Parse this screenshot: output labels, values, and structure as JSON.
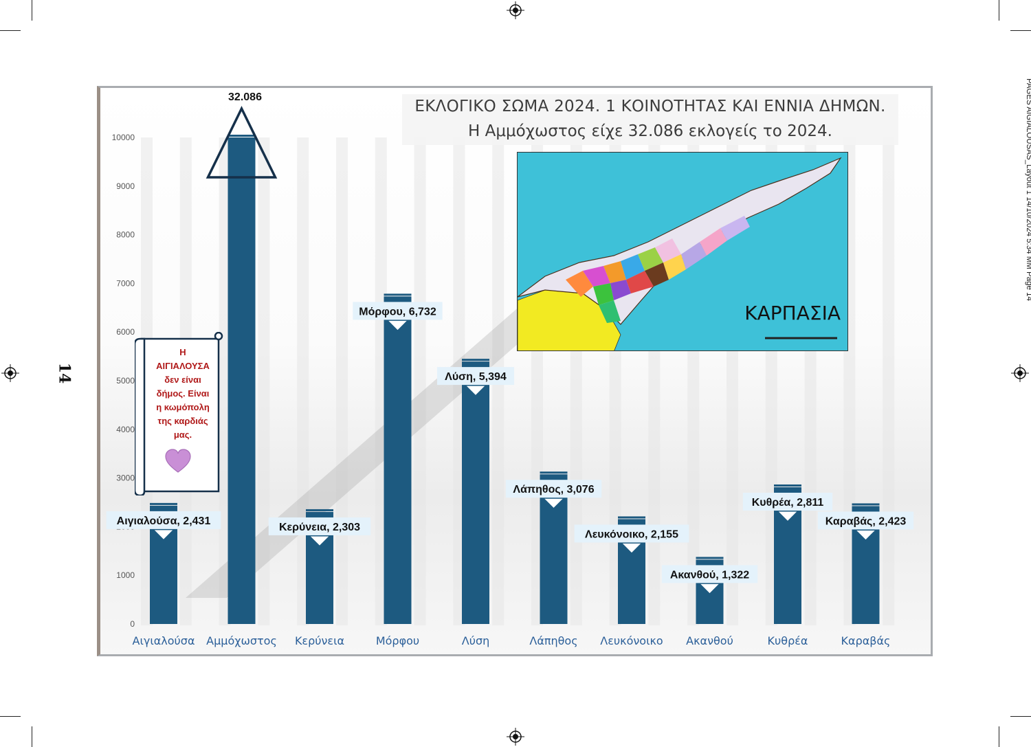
{
  "page": {
    "page_number": "14",
    "slug": "PAGES AIGIALOUSAS_Layout 1  14/10/2024  5:34 ΜΜ  Page 14"
  },
  "title_line1": "ΕΚΛΟΓΙΚΟ ΣΩΜΑ 2024.  1 ΚΟΙΝΟΤΗΤΑΣ ΚΑΙ ΕΝΝΙΑ ΔΗΜΩΝ.",
  "title_line2": "Η Αμμόχωστος είχε 32.086 εκλογείς το 2024.",
  "map_label": "ΚΑΡΠΑΣΙΑ",
  "note_text": "Η ΑΙΓΙΑΛΟΥΣΑ δεν είναι δήμος. Είναι η κωμόπολη της καρδιάς μας.",
  "note_lines": [
    "Η",
    "ΑΙΓΙΑΛΟΥΣΑ",
    "δεν είναι",
    "δήμος. Είναι",
    "η κωμόπολη",
    "της καρδιάς",
    "μας."
  ],
  "colors": {
    "bar": "#1d5a80",
    "axis_label": "#2b5f99",
    "data_label_bg": "#e4f2fb",
    "note_text": "#b01818",
    "heart": "#c98fd6",
    "triangle_stroke": "#15304a"
  },
  "icons": [
    "registration-mark-icon",
    "triangle-marker-icon",
    "heart-icon",
    "down-arrow-icon"
  ],
  "chart_data": {
    "type": "bar",
    "title": "ΕΚΛΟΓΙΚΟ ΣΩΜΑ 2024.  1 ΚΟΙΝΟΤΗΤΑΣ ΚΑΙ ΕΝΝΙΑ ΔΗΜΩΝ.",
    "subtitle": "Η Αμμόχωστος είχε 32.086 εκλογείς το 2024.",
    "categories": [
      "Αιγιαλούσα",
      "Αμμόχωστος",
      "Κερύνεια",
      "Μόρφου",
      "Λύση",
      "Λάπηθος",
      "Λευκόνοικο",
      "Ακανθού",
      "Κυθρέα",
      "Καραβάς"
    ],
    "values": [
      2431,
      32086,
      2303,
      6732,
      5394,
      3076,
      2155,
      1322,
      2811,
      2423
    ],
    "data_labels": [
      "Αιγιαλούσα, 2,431",
      "32.086",
      "Κερύνεια, 2,303",
      "Μόρφου, 6,732",
      "Λύση, 5,394",
      "Λάπηθος, 3,076",
      "Λευκόνοικο, 2,155",
      "Ακανθού, 1,322",
      "Κυθρέα, 2,811",
      "Καραβάς, 2,423"
    ],
    "y_ticks": [
      "0",
      "1000",
      "2000",
      "3000",
      "4000",
      "5000",
      "6000",
      "7000",
      "8000",
      "9000",
      "10000"
    ],
    "ylim": [
      0,
      10000
    ],
    "clipped": [
      false,
      true,
      false,
      false,
      false,
      false,
      false,
      false,
      false,
      false
    ],
    "xlabel": "",
    "ylabel": "",
    "grid": true,
    "legend": "none"
  }
}
